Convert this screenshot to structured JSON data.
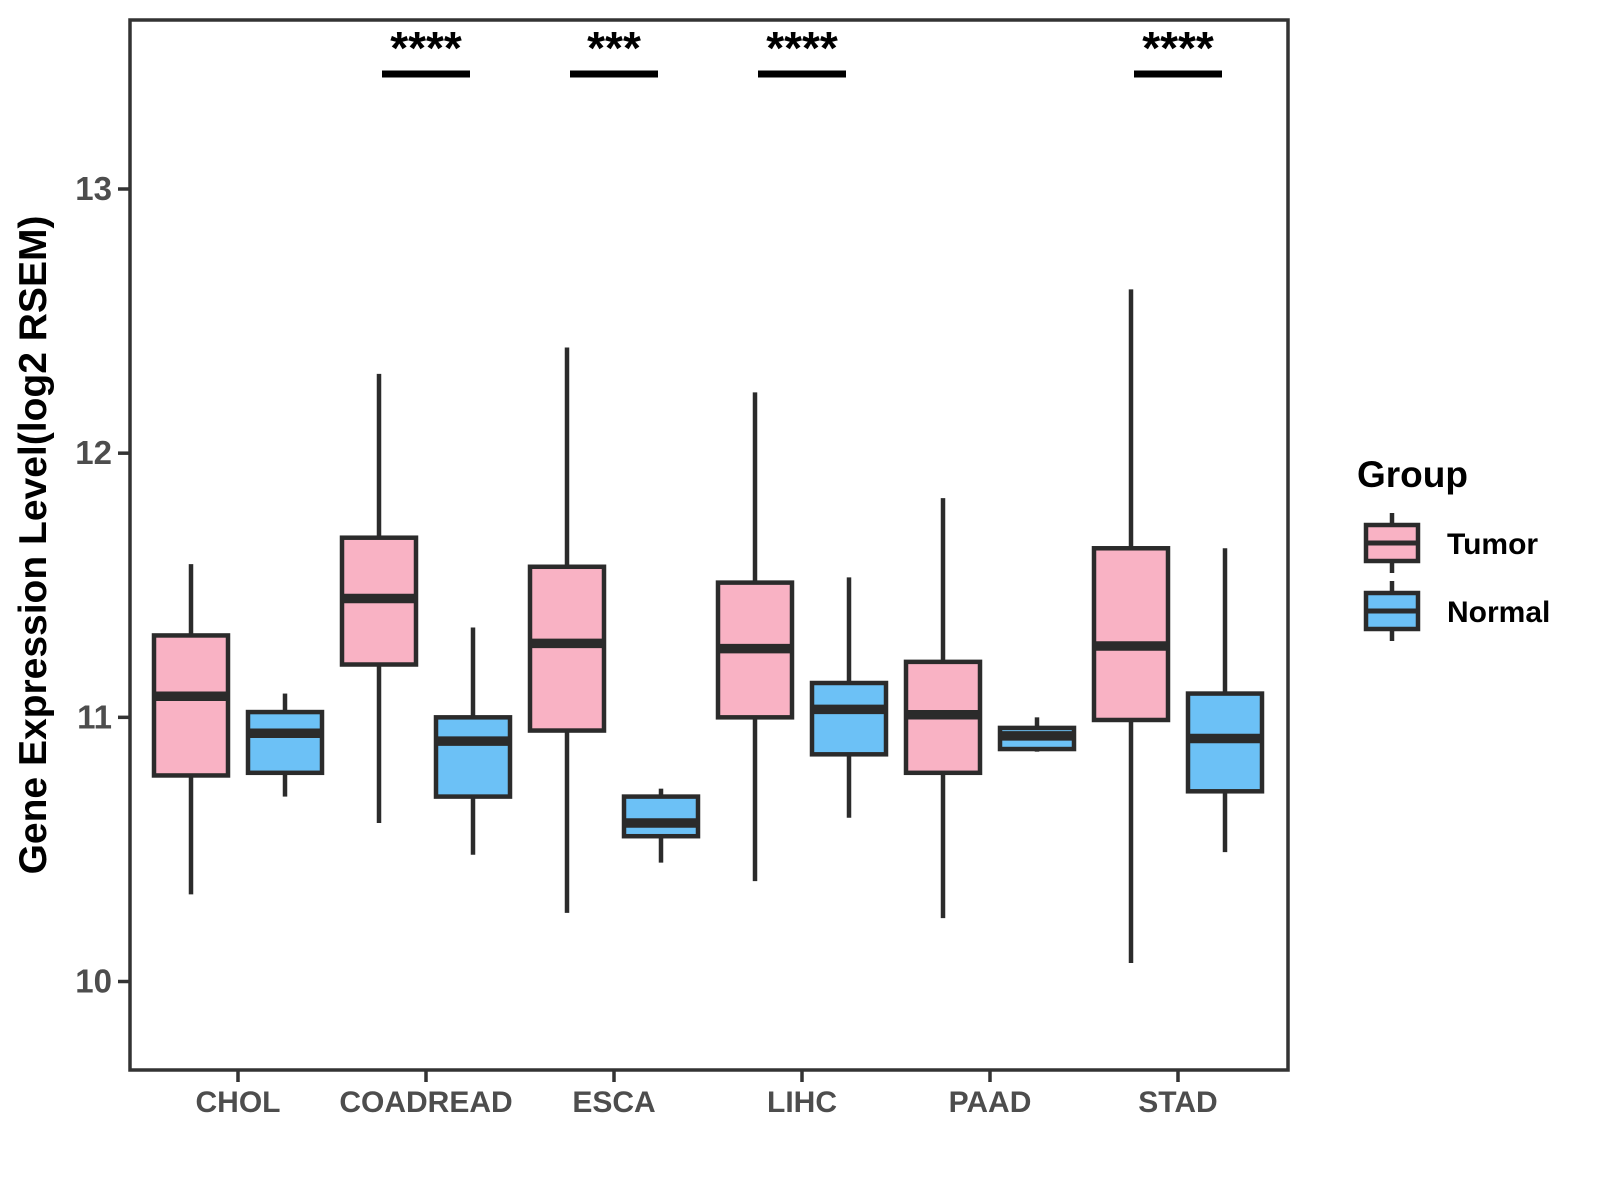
{
  "figure": {
    "background": "#ffffff",
    "y_axis": {
      "title": "Gene Expression Level(log2 RSEM)",
      "ticks": [
        "10",
        "11",
        "12",
        "13"
      ]
    },
    "legend": {
      "title": "Group",
      "items": [
        {
          "label": "Tumor",
          "color": "#F9B2C4"
        },
        {
          "label": "Normal",
          "color": "#6CC1F6"
        }
      ]
    }
  },
  "chart_data": {
    "type": "boxplot",
    "title": "",
    "xlabel": "",
    "ylabel": "Gene Expression Level(log2 RSEM)",
    "ylim": [
      9.67,
      13.64
    ],
    "yticks": [
      10,
      11,
      12,
      13
    ],
    "grid": "off",
    "legend_position": "right",
    "legend_title": "Group",
    "categories": [
      "CHOL",
      "COADREAD",
      "ESCA",
      "LIHC",
      "PAAD",
      "STAD"
    ],
    "groups": [
      "Tumor",
      "Normal"
    ],
    "colors": {
      "Tumor": "#F9B2C4",
      "Normal": "#6CC1F6",
      "stroke": "#2b2b2b",
      "axis": "#333333"
    },
    "series": [
      {
        "name": "Tumor",
        "boxes": [
          {
            "category": "CHOL",
            "min": 10.33,
            "q1": 10.78,
            "median": 11.08,
            "q3": 11.31,
            "max": 11.58
          },
          {
            "category": "COADREAD",
            "min": 10.6,
            "q1": 11.2,
            "median": 11.45,
            "q3": 11.68,
            "max": 12.3
          },
          {
            "category": "ESCA",
            "min": 10.26,
            "q1": 10.95,
            "median": 11.28,
            "q3": 11.57,
            "max": 12.4
          },
          {
            "category": "LIHC",
            "min": 10.38,
            "q1": 11.0,
            "median": 11.26,
            "q3": 11.51,
            "max": 12.23
          },
          {
            "category": "PAAD",
            "min": 10.24,
            "q1": 10.79,
            "median": 11.01,
            "q3": 11.21,
            "max": 11.83
          },
          {
            "category": "STAD",
            "min": 10.07,
            "q1": 10.99,
            "median": 11.27,
            "q3": 11.64,
            "max": 12.62
          }
        ]
      },
      {
        "name": "Normal",
        "boxes": [
          {
            "category": "CHOL",
            "min": 10.7,
            "q1": 10.79,
            "median": 10.94,
            "q3": 11.02,
            "max": 11.09
          },
          {
            "category": "COADREAD",
            "min": 10.48,
            "q1": 10.7,
            "median": 10.91,
            "q3": 11.0,
            "max": 11.34
          },
          {
            "category": "ESCA",
            "min": 10.45,
            "q1": 10.55,
            "median": 10.6,
            "q3": 10.7,
            "max": 10.73
          },
          {
            "category": "LIHC",
            "min": 10.62,
            "q1": 10.86,
            "median": 11.03,
            "q3": 11.13,
            "max": 11.53
          },
          {
            "category": "PAAD",
            "min": 10.87,
            "q1": 10.88,
            "median": 10.93,
            "q3": 10.96,
            "max": 11.0
          },
          {
            "category": "STAD",
            "min": 10.49,
            "q1": 10.72,
            "median": 10.92,
            "q3": 11.09,
            "max": 11.64
          }
        ]
      }
    ],
    "significance": [
      {
        "category": "COADREAD",
        "label": "****"
      },
      {
        "category": "ESCA",
        "label": "***"
      },
      {
        "category": "LIHC",
        "label": "****"
      },
      {
        "category": "STAD",
        "label": "****"
      }
    ]
  }
}
